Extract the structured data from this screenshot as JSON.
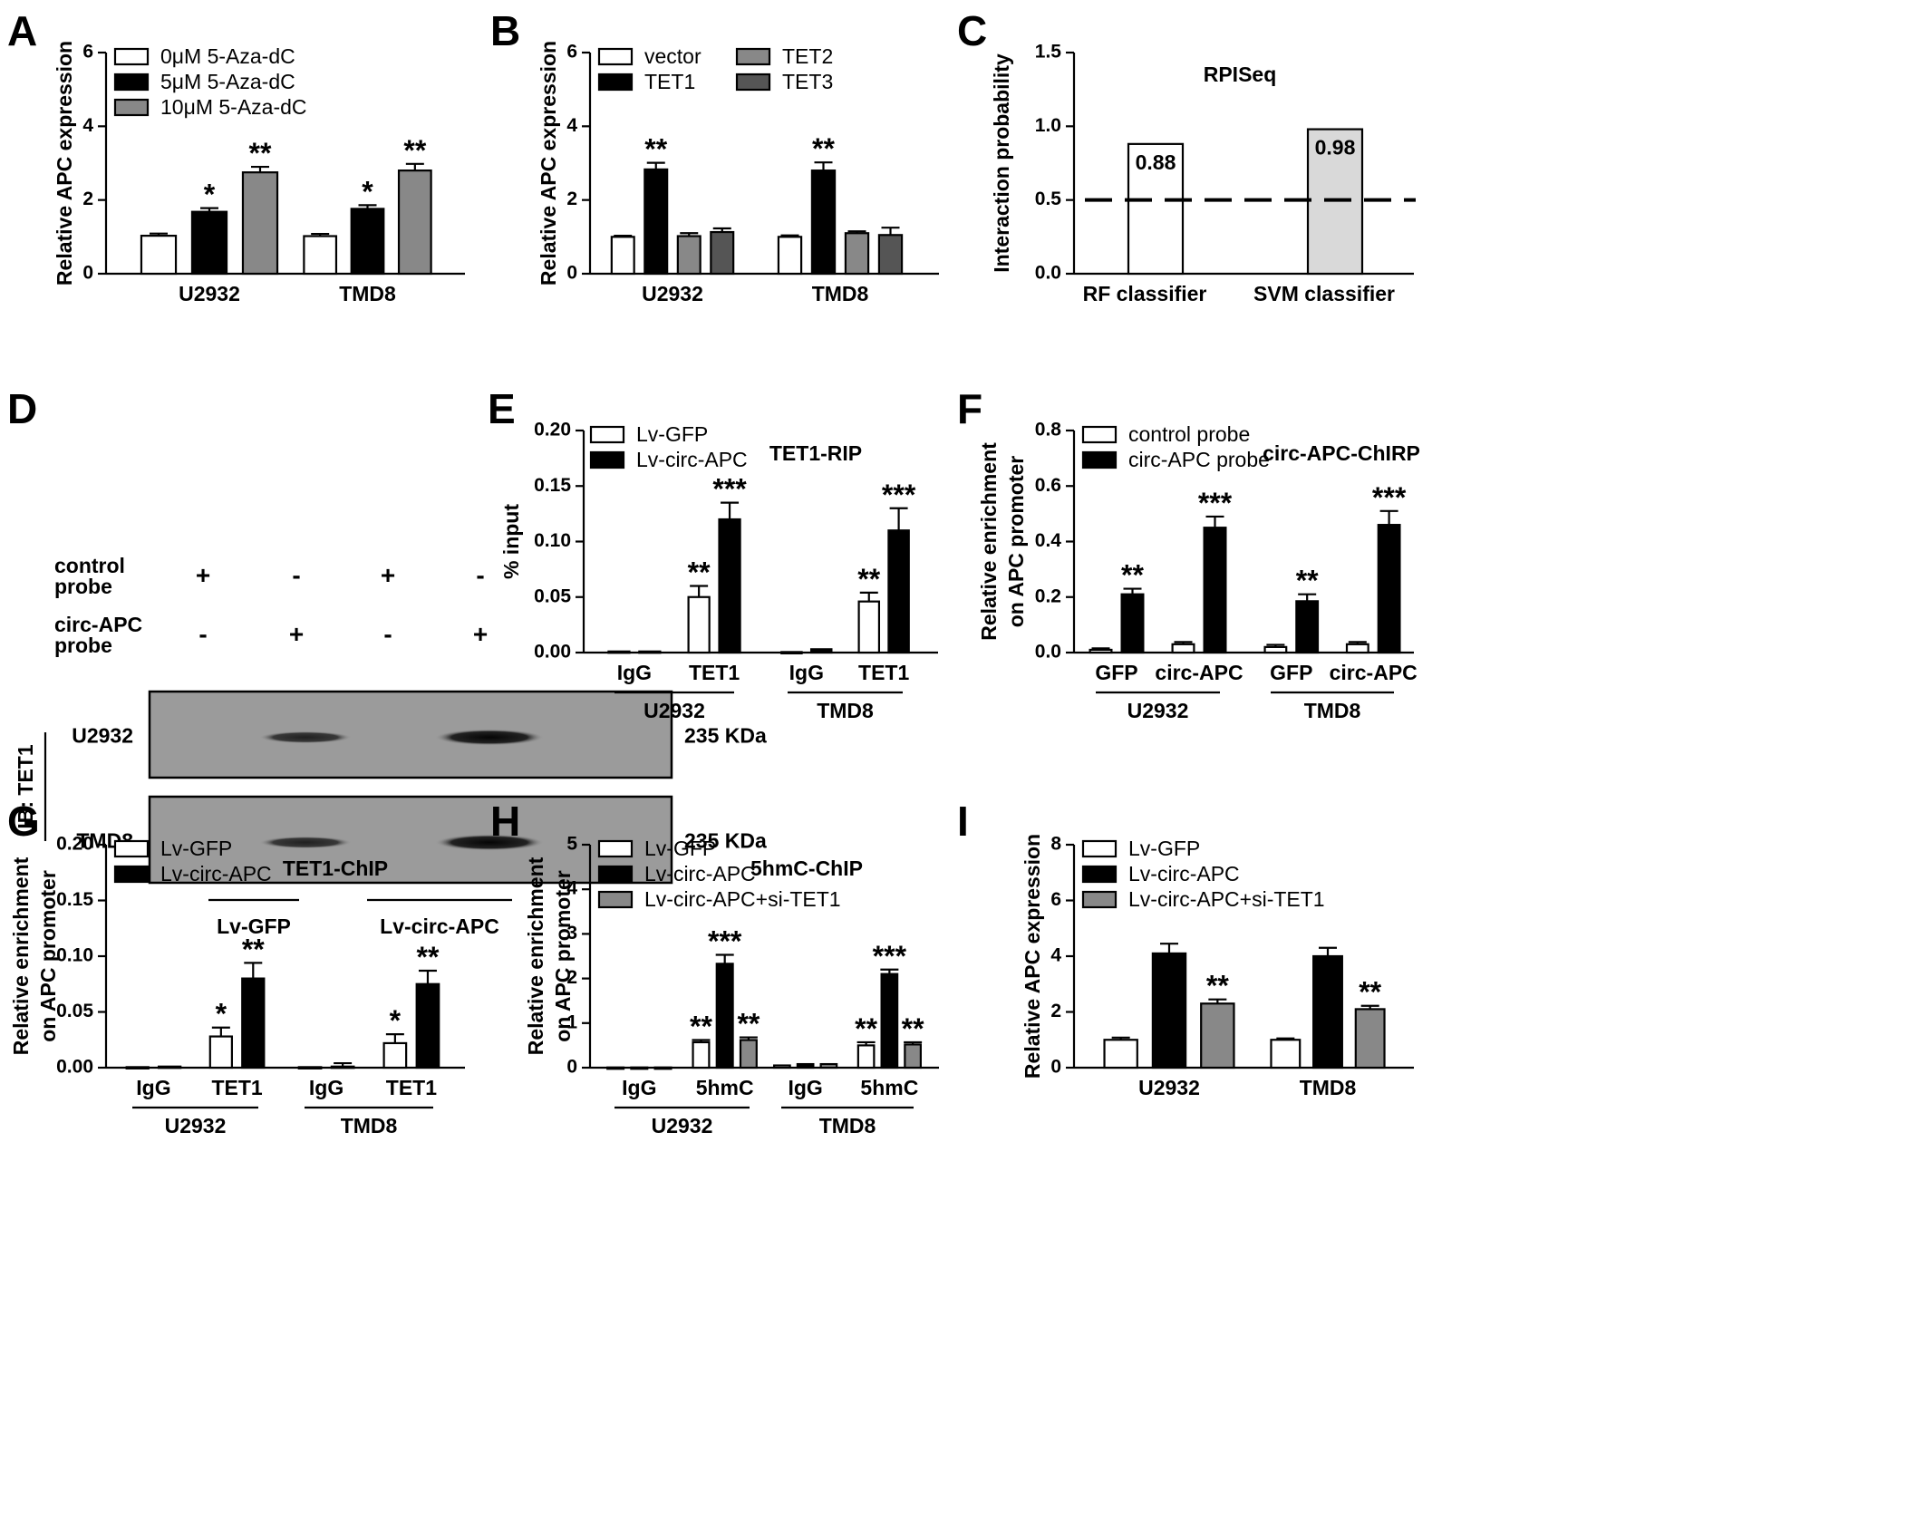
{
  "colors": {
    "white": "#ffffff",
    "black": "#000000",
    "gray": "#888888",
    "darkgray": "#555555",
    "lightgray": "#d9d9d9"
  },
  "panel_letters": [
    "A",
    "B",
    "C",
    "D",
    "E",
    "F",
    "G",
    "H",
    "I"
  ],
  "chart_data": [
    {
      "panel": "A",
      "type": "bar",
      "ylabel": "Relative APC expression",
      "ylim": [
        0,
        6
      ],
      "yticks": [
        "0",
        "2",
        "4",
        "6"
      ],
      "groups": [
        {
          "label": "U2932"
        },
        {
          "label": "TMD8"
        }
      ],
      "series": [
        {
          "name": "0μM 5-Aza-dC",
          "color": "white",
          "values": [
            1.03,
            1.02
          ],
          "errors": [
            0.06,
            0.06
          ],
          "sig": [
            "",
            ""
          ]
        },
        {
          "name": "5μM 5-Aza-dC",
          "color": "black",
          "values": [
            1.68,
            1.76
          ],
          "errors": [
            0.1,
            0.1
          ],
          "sig": [
            "*",
            "*"
          ]
        },
        {
          "name": "10μM 5-Aza-dC",
          "color": "gray",
          "values": [
            2.75,
            2.8
          ],
          "errors": [
            0.15,
            0.18
          ],
          "sig": [
            "**",
            "**"
          ]
        }
      ]
    },
    {
      "panel": "B",
      "type": "bar",
      "ylabel": "Relative APC expression",
      "ylim": [
        0,
        6
      ],
      "yticks": [
        "0",
        "2",
        "4",
        "6"
      ],
      "groups": [
        {
          "label": "U2932"
        },
        {
          "label": "TMD8"
        }
      ],
      "series": [
        {
          "name": "vector",
          "color": "white",
          "values": [
            1.0,
            1.0
          ],
          "errors": [
            0.03,
            0.04
          ],
          "sig": [
            "",
            ""
          ]
        },
        {
          "name": "TET1",
          "color": "black",
          "values": [
            2.83,
            2.8
          ],
          "errors": [
            0.18,
            0.22
          ],
          "sig": [
            "**",
            "**"
          ]
        },
        {
          "name": "TET2",
          "color": "gray",
          "values": [
            1.02,
            1.1
          ],
          "errors": [
            0.08,
            0.05
          ],
          "sig": [
            "",
            ""
          ]
        },
        {
          "name": "TET3",
          "color": "darkgray",
          "values": [
            1.13,
            1.05
          ],
          "errors": [
            0.1,
            0.2
          ],
          "sig": [
            "",
            ""
          ]
        }
      ]
    },
    {
      "panel": "C",
      "type": "bar",
      "title": "RPISeq",
      "ylabel": "Interaction probability",
      "ylim": [
        0,
        1.5
      ],
      "yticks": [
        "0.0",
        "0.5",
        "1.0",
        "1.5"
      ],
      "categories": [
        "RF classifier",
        "SVM classifier"
      ],
      "values": [
        0.88,
        0.98
      ],
      "value_labels": [
        "0.88",
        "0.98"
      ],
      "colors": [
        "white",
        "lightgray"
      ],
      "reference_line": 0.5
    },
    {
      "panel": "E",
      "type": "bar",
      "title": "TET1-RIP",
      "ylabel": "% input",
      "ylim": [
        0,
        0.2
      ],
      "yticks": [
        "0.00",
        "0.05",
        "0.10",
        "0.15",
        "0.20"
      ],
      "groups": [
        {
          "label": "U2932",
          "sub": [
            "IgG",
            "TET1"
          ]
        },
        {
          "label": "TMD8",
          "sub": [
            "IgG",
            "TET1"
          ]
        }
      ],
      "series": [
        {
          "name": "Lv-GFP",
          "color": "white",
          "values": [
            0.001,
            0.05,
            0.0005,
            0.046
          ],
          "errors": [
            0.0005,
            0.01,
            0.0003,
            0.008
          ],
          "sig": [
            "",
            "**",
            "",
            "**"
          ]
        },
        {
          "name": "Lv-circ-APC",
          "color": "black",
          "values": [
            0.001,
            0.12,
            0.003,
            0.11
          ],
          "errors": [
            0.0005,
            0.015,
            0.0005,
            0.02
          ],
          "sig": [
            "",
            "***",
            "",
            "***"
          ]
        }
      ]
    },
    {
      "panel": "F",
      "type": "bar",
      "title": "circ-APC-ChIRP",
      "ylabel": "Relative enrichment on APC promoter",
      "ylim": [
        0,
        0.8
      ],
      "yticks": [
        "0.0",
        "0.2",
        "0.4",
        "0.6",
        "0.8"
      ],
      "groups": [
        {
          "label": "U2932",
          "sub": [
            "GFP",
            "circ-APC"
          ]
        },
        {
          "label": "TMD8",
          "sub": [
            "GFP",
            "circ-APC"
          ]
        }
      ],
      "series": [
        {
          "name": "control probe",
          "color": "white",
          "values": [
            0.01,
            0.03,
            0.02,
            0.03
          ],
          "errors": [
            0.005,
            0.008,
            0.008,
            0.008
          ],
          "sig": [
            "",
            "",
            "",
            ""
          ]
        },
        {
          "name": "circ-APC probe",
          "color": "black",
          "values": [
            0.21,
            0.45,
            0.185,
            0.46
          ],
          "errors": [
            0.02,
            0.04,
            0.025,
            0.05
          ],
          "sig": [
            "**",
            "***",
            "**",
            "***"
          ]
        }
      ]
    },
    {
      "panel": "G",
      "type": "bar",
      "title": "TET1-ChIP",
      "ylabel": "Relative enrichment on APC promoter",
      "ylim": [
        0,
        0.2
      ],
      "yticks": [
        "0.00",
        "0.05",
        "0.10",
        "0.15",
        "0.20"
      ],
      "groups": [
        {
          "label": "U2932",
          "sub": [
            "IgG",
            "TET1"
          ]
        },
        {
          "label": "TMD8",
          "sub": [
            "IgG",
            "TET1"
          ]
        }
      ],
      "series": [
        {
          "name": "Lv-GFP",
          "color": "white",
          "values": [
            0.0005,
            0.028,
            0.0005,
            0.022
          ],
          "errors": [
            0.0003,
            0.008,
            0.0003,
            0.008
          ],
          "sig": [
            "",
            "*",
            "",
            "*"
          ]
        },
        {
          "name": "Lv-circ-APC",
          "color": "black",
          "values": [
            0.001,
            0.08,
            0.001,
            0.075
          ],
          "errors": [
            0.0005,
            0.014,
            0.003,
            0.012
          ],
          "sig": [
            "",
            "**",
            "",
            "**"
          ]
        }
      ]
    },
    {
      "panel": "H",
      "type": "bar",
      "title": "5hmC-ChIP",
      "ylabel": "Relative enrichment on APC promoter",
      "ylim": [
        0,
        5
      ],
      "yticks": [
        "0",
        "1",
        "2",
        "3",
        "4",
        "5"
      ],
      "groups": [
        {
          "label": "U2932",
          "sub": [
            "IgG",
            "5hmC"
          ]
        },
        {
          "label": "TMD8",
          "sub": [
            "IgG",
            "5hmC"
          ]
        }
      ],
      "series": [
        {
          "name": "Lv-GFP",
          "color": "white",
          "values": [
            0.005,
            0.57,
            0.05,
            0.5
          ],
          "errors": [
            0.003,
            0.05,
            0.01,
            0.07
          ],
          "sig": [
            "",
            "**",
            "",
            "**"
          ]
        },
        {
          "name": "Lv-circ-APC",
          "color": "black",
          "values": [
            0.005,
            2.33,
            0.08,
            2.1
          ],
          "errors": [
            0.003,
            0.2,
            0.01,
            0.1
          ],
          "sig": [
            "",
            "***",
            "",
            "***"
          ]
        },
        {
          "name": "Lv-circ-APC+si-TET1",
          "color": "gray",
          "values": [
            0.005,
            0.62,
            0.08,
            0.52
          ],
          "errors": [
            0.003,
            0.06,
            0.01,
            0.05
          ],
          "sig": [
            "",
            "**",
            "",
            "**"
          ]
        }
      ]
    },
    {
      "panel": "I",
      "type": "bar",
      "ylabel": "Relative APC expression",
      "ylim": [
        0,
        8
      ],
      "yticks": [
        "0",
        "2",
        "4",
        "6",
        "8"
      ],
      "groups": [
        {
          "label": "U2932"
        },
        {
          "label": "TMD8"
        }
      ],
      "series": [
        {
          "name": "Lv-GFP",
          "color": "white",
          "values": [
            1.0,
            1.0
          ],
          "errors": [
            0.08,
            0.05
          ],
          "sig": [
            "",
            ""
          ]
        },
        {
          "name": "Lv-circ-APC",
          "color": "black",
          "values": [
            4.1,
            4.0
          ],
          "errors": [
            0.35,
            0.3
          ],
          "sig": [
            "",
            ""
          ]
        },
        {
          "name": "Lv-circ-APC+si-TET1",
          "color": "gray",
          "values": [
            2.3,
            2.1
          ],
          "errors": [
            0.15,
            0.12
          ],
          "sig": [
            "**",
            "**"
          ]
        }
      ]
    }
  ],
  "western_blot": {
    "panel": "D",
    "probe_rows": [
      {
        "label_lines": [
          "control",
          "probe"
        ],
        "signs": [
          "+",
          "-",
          "+",
          "-"
        ]
      },
      {
        "label_lines": [
          "circ-APC",
          "probe"
        ],
        "signs": [
          "-",
          "+",
          "-",
          "+"
        ]
      }
    ],
    "ib_label": "IB: TET1",
    "blots": [
      {
        "cell_line": "U2932",
        "size": "235 KDa"
      },
      {
        "cell_line": "TMD8",
        "size": "235 KDa"
      }
    ],
    "band_intensity": [
      0,
      0.55,
      0,
      1
    ],
    "groups": [
      "Lv-GFP",
      "Lv-circ-APC"
    ]
  }
}
